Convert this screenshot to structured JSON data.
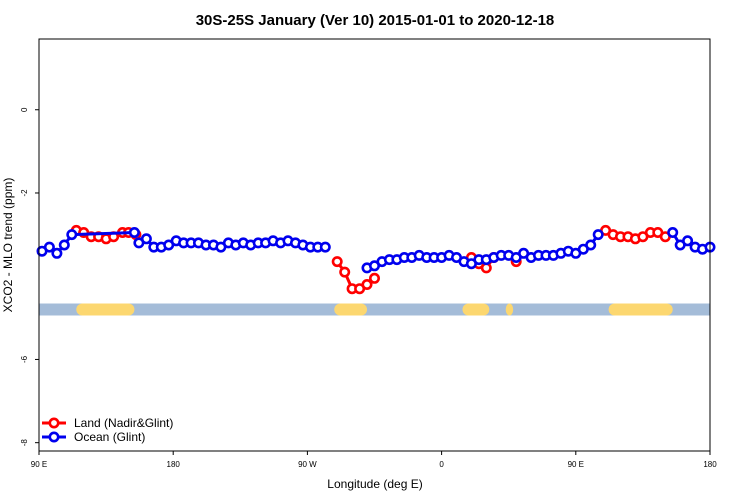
{
  "chart_data": {
    "type": "line",
    "title": "30S-25S January (Ver 10)   2015-01-01 to 2020-12-18",
    "xlabel": "Longitude (deg E)",
    "ylabel": "XCO2 - MLO trend (ppm)",
    "xlim": [
      90,
      540
    ],
    "ylim": [
      -8.2,
      1.7
    ],
    "x_ticks": [
      {
        "value": 90,
        "label": "90 E"
      },
      {
        "value": 180,
        "label": "180"
      },
      {
        "value": 270,
        "label": "90 W"
      },
      {
        "value": 360,
        "label": "0"
      },
      {
        "value": 450,
        "label": "90 E"
      },
      {
        "value": 540,
        "label": "180"
      }
    ],
    "y_ticks": [
      {
        "value": 0,
        "label": "0"
      },
      {
        "value": -2,
        "label": "-2"
      },
      {
        "value": -6,
        "label": "-6"
      },
      {
        "value": -8,
        "label": "-8"
      }
    ],
    "legend": {
      "position": "bottom-left",
      "entries": [
        {
          "label": "Land (Nadir&Glint)",
          "color": "#ff0000"
        },
        {
          "label": "Ocean (Glint)",
          "color": "#0000ee"
        }
      ]
    },
    "surface_band": {
      "y": -4.8,
      "ocean_color": "#a4bcd8",
      "land_color": "#fcd770",
      "land_ranges": [
        [
          115,
          154
        ],
        [
          288,
          310
        ],
        [
          374,
          392
        ],
        [
          403,
          408
        ],
        [
          472,
          515
        ]
      ]
    },
    "series": [
      {
        "name": "Land (Nadir&Glint)",
        "color": "#ff0000",
        "segments": [
          [
            [
              115,
              -2.9
            ],
            [
              120,
              -2.95
            ],
            [
              125,
              -3.05
            ],
            [
              130,
              -3.05
            ],
            [
              135,
              -3.1
            ],
            [
              140,
              -3.05
            ],
            [
              146,
              -2.95
            ],
            [
              150,
              -2.95
            ],
            [
              155,
              -3.0
            ]
          ],
          [
            [
              290,
              -3.65
            ],
            [
              295,
              -3.9
            ],
            [
              300,
              -4.3
            ],
            [
              305,
              -4.3
            ],
            [
              310,
              -4.2
            ],
            [
              315,
              -4.05
            ]
          ],
          [
            [
              380,
              -3.55
            ],
            [
              385,
              -3.7
            ],
            [
              390,
              -3.8
            ],
            [
              395,
              -3.55
            ]
          ],
          [
            [
              410,
              -3.65
            ]
          ],
          [
            [
              470,
              -2.9
            ],
            [
              475,
              -3.0
            ],
            [
              480,
              -3.05
            ],
            [
              485,
              -3.05
            ],
            [
              490,
              -3.1
            ],
            [
              495,
              -3.05
            ],
            [
              500,
              -2.95
            ],
            [
              505,
              -2.95
            ],
            [
              510,
              -3.05
            ]
          ]
        ]
      },
      {
        "name": "Ocean (Glint)",
        "color": "#0000ee",
        "segments": [
          [
            [
              92,
              -3.4
            ],
            [
              97,
              -3.3
            ],
            [
              102,
              -3.45
            ],
            [
              107,
              -3.25
            ],
            [
              112,
              -3.0
            ],
            [
              154,
              -2.95
            ]
          ],
          [
            [
              157,
              -3.2
            ],
            [
              162,
              -3.1
            ],
            [
              167,
              -3.3
            ],
            [
              172,
              -3.3
            ],
            [
              177,
              -3.25
            ],
            [
              182,
              -3.15
            ],
            [
              187,
              -3.2
            ],
            [
              192,
              -3.2
            ],
            [
              197,
              -3.2
            ],
            [
              202,
              -3.25
            ],
            [
              207,
              -3.25
            ],
            [
              212,
              -3.3
            ],
            [
              217,
              -3.2
            ],
            [
              222,
              -3.25
            ],
            [
              227,
              -3.2
            ],
            [
              232,
              -3.25
            ],
            [
              237,
              -3.2
            ],
            [
              242,
              -3.2
            ],
            [
              247,
              -3.15
            ],
            [
              252,
              -3.2
            ],
            [
              257,
              -3.15
            ],
            [
              262,
              -3.2
            ],
            [
              267,
              -3.25
            ],
            [
              272,
              -3.3
            ],
            [
              277,
              -3.3
            ],
            [
              282,
              -3.3
            ]
          ],
          [
            [
              310,
              -3.8
            ],
            [
              315,
              -3.75
            ],
            [
              320,
              -3.65
            ],
            [
              325,
              -3.6
            ],
            [
              330,
              -3.6
            ],
            [
              335,
              -3.55
            ],
            [
              340,
              -3.55
            ],
            [
              345,
              -3.5
            ],
            [
              350,
              -3.55
            ],
            [
              355,
              -3.55
            ],
            [
              360,
              -3.55
            ],
            [
              365,
              -3.5
            ],
            [
              370,
              -3.55
            ],
            [
              375,
              -3.65
            ],
            [
              380,
              -3.7
            ],
            [
              385,
              -3.6
            ],
            [
              390,
              -3.6
            ],
            [
              395,
              -3.55
            ],
            [
              400,
              -3.5
            ],
            [
              405,
              -3.5
            ],
            [
              410,
              -3.55
            ],
            [
              415,
              -3.45
            ],
            [
              420,
              -3.55
            ],
            [
              425,
              -3.5
            ],
            [
              430,
              -3.5
            ],
            [
              435,
              -3.5
            ],
            [
              440,
              -3.45
            ],
            [
              445,
              -3.4
            ],
            [
              450,
              -3.45
            ],
            [
              455,
              -3.35
            ],
            [
              460,
              -3.25
            ],
            [
              465,
              -3.0
            ]
          ],
          [
            [
              515,
              -2.95
            ],
            [
              520,
              -3.25
            ],
            [
              525,
              -3.15
            ],
            [
              530,
              -3.3
            ],
            [
              535,
              -3.35
            ],
            [
              540,
              -3.3
            ]
          ]
        ]
      }
    ]
  }
}
